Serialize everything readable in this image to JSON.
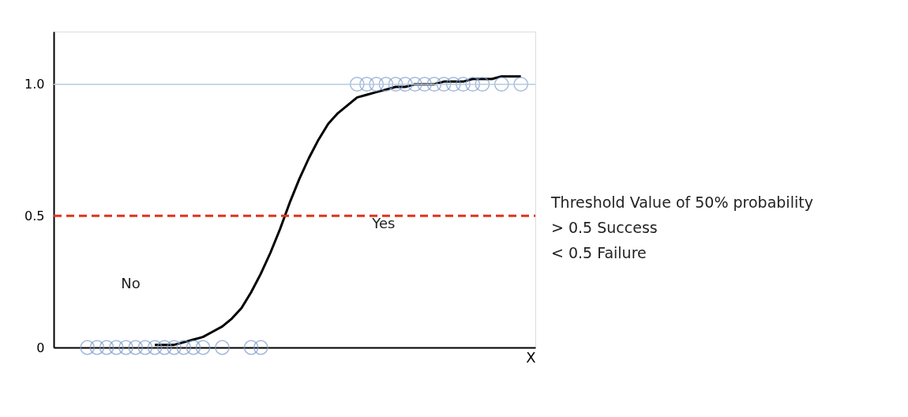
{
  "chart_data": {
    "type": "line",
    "xlabel": "X",
    "ylim": [
      0,
      1.2
    ],
    "categories": [
      null,
      null,
      null,
      null,
      null,
      null,
      null,
      null,
      null,
      null,
      null,
      null,
      null,
      null,
      null,
      null,
      null,
      null,
      null,
      null,
      null,
      null,
      null,
      null,
      null,
      null,
      null,
      null,
      null,
      null,
      null,
      null,
      null,
      null,
      null,
      null,
      null,
      null,
      null,
      null,
      null,
      null,
      null,
      null,
      null,
      null,
      null,
      null,
      null,
      null
    ],
    "yticks": [
      0,
      {
        "value": 0.5,
        "label": "0.5"
      },
      {
        "value": 1,
        "label": "1.0"
      }
    ],
    "tick_labels": "y",
    "grid": false,
    "series": [
      {
        "color": "#000000",
        "line_style": "solid",
        "values": [
          null,
          null,
          null,
          null,
          null,
          null,
          null,
          null,
          null,
          null,
          0.01,
          0.01,
          0.01,
          0.02,
          0.03,
          0.04,
          0.06,
          0.08,
          0.11,
          0.15,
          0.21,
          0.28,
          0.36,
          0.45,
          0.55,
          0.64,
          0.72,
          0.79,
          0.85,
          0.89,
          0.92,
          0.95,
          0.96,
          0.97,
          0.98,
          0.99,
          0.99,
          1.0,
          1.0,
          1.0,
          1.01,
          1.01,
          1.01,
          1.02,
          1.02,
          1.02,
          1.03,
          1.03,
          1.03,
          null
        ]
      },
      {
        "type": "scatter",
        "color": "#7f9cc8",
        "marker": "circle",
        "values": [
          null,
          null,
          null,
          0,
          0,
          0,
          0,
          0,
          0,
          0,
          0,
          0,
          0,
          0,
          0,
          0,
          null,
          0,
          null,
          null,
          0,
          0,
          null,
          null,
          null,
          null,
          null,
          null,
          null,
          null,
          null,
          null,
          null,
          null,
          null,
          null,
          null,
          null,
          null,
          null,
          null,
          null,
          null,
          null,
          null,
          null,
          null,
          null,
          null,
          null
        ]
      },
      {
        "type": "scatter",
        "color": "#7f9cc8",
        "marker": "circle",
        "values": [
          null,
          null,
          null,
          null,
          null,
          null,
          null,
          null,
          null,
          null,
          null,
          null,
          null,
          null,
          null,
          null,
          null,
          null,
          null,
          null,
          null,
          null,
          null,
          null,
          null,
          null,
          null,
          null,
          null,
          null,
          null,
          1,
          1,
          1,
          1,
          1,
          1,
          1,
          1,
          1,
          1,
          1,
          1,
          1,
          1,
          null,
          1,
          null,
          1,
          null
        ]
      }
    ],
    "ref_lines": [
      {
        "axis": "y",
        "value": 0.5,
        "label": "Threshold Value of 50% probability\n> 0.5 Success\n< 0.5 Failure",
        "color": "#e0341c",
        "line_style": "dashed"
      },
      {
        "axis": "y",
        "value": 1.0,
        "color": "#b3cbe0",
        "line_style": "solid"
      }
    ],
    "annotations": [
      "Yes",
      "No"
    ]
  }
}
